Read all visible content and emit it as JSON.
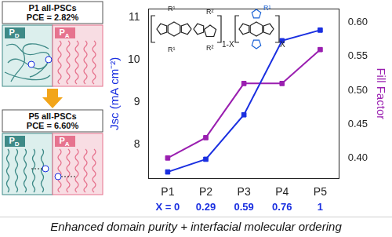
{
  "chart_data": {
    "type": "line",
    "categories": [
      "P1",
      "P2",
      "P3",
      "P4",
      "P5"
    ],
    "composition_labels": [
      "X = 0",
      "0.29",
      "0.59",
      "0.76",
      "1"
    ],
    "y_label": "Jsc (mA cm⁻²)",
    "y2_label": "Fill Factor",
    "ylim": [
      7.2,
      11.2
    ],
    "yticks": [
      8,
      9,
      10,
      11
    ],
    "y2lim": [
      0.37,
      0.62
    ],
    "y2ticks": [
      {
        "value": 0.4,
        "label": "0.40"
      },
      {
        "value": 0.45,
        "label": "0.45"
      },
      {
        "value": 0.5,
        "label": "0.50"
      },
      {
        "value": 0.55,
        "label": "0.55"
      },
      {
        "value": 0.6,
        "label": "0.60"
      }
    ],
    "grid": false,
    "series": [
      {
        "color": "#1a2fe0",
        "marker": "square",
        "values": [
          7.35,
          7.65,
          8.7,
          10.45,
          10.7
        ]
      },
      {
        "color": "#9a1fb0",
        "marker": "square",
        "axis": "y2",
        "values": [
          0.4,
          0.43,
          0.51,
          0.51,
          0.56
        ]
      }
    ]
  },
  "structure": {
    "repeat_labels": [
      "1-X",
      "X"
    ],
    "substituents": [
      "R¹",
      "R¹",
      "R²",
      "R²",
      "R¹"
    ]
  },
  "diagram": {
    "before": {
      "title": "P1 all-PSCs",
      "pce": "PCE = 2.82%"
    },
    "after": {
      "title": "P5 all-PSCs",
      "pce": "PCE = 6.60%"
    },
    "donor_label": {
      "text": "P",
      "subscript": "D"
    },
    "acceptor_label": {
      "text": "P",
      "subscript": "A"
    }
  },
  "caption": "Enhanced domain purity + interfacial molecular ordering"
}
